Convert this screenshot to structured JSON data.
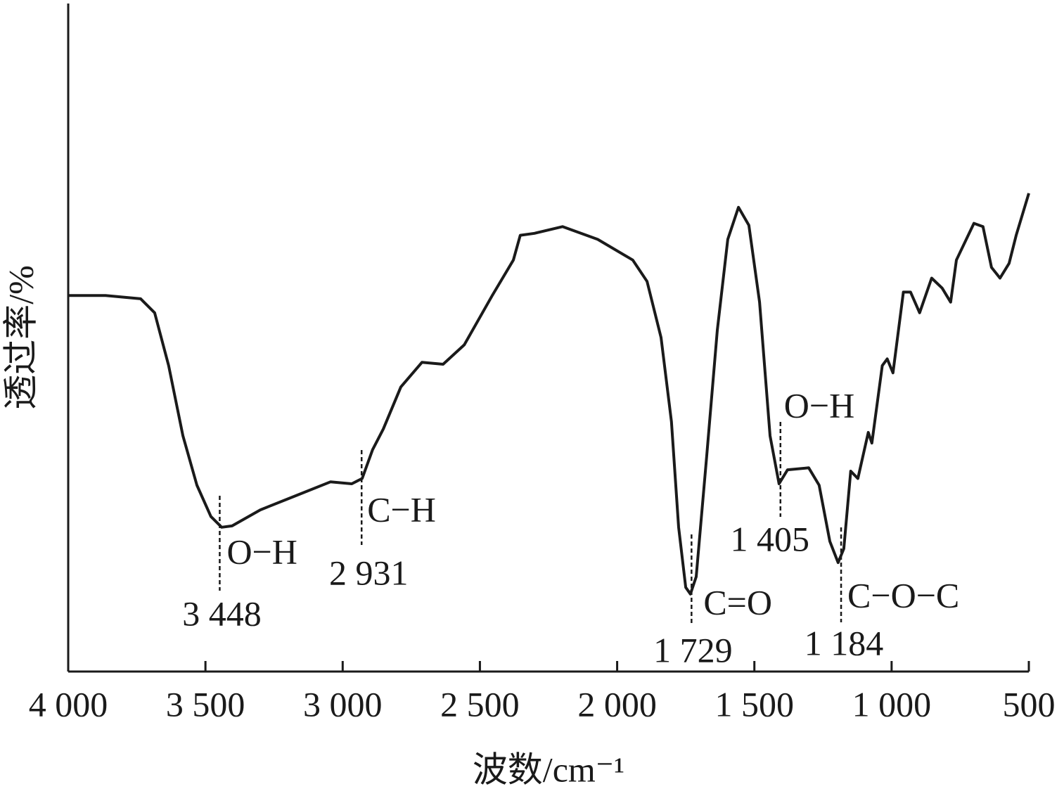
{
  "chart_data": {
    "type": "line",
    "x_label": "波数/cm⁻¹",
    "y_label": "透过率/%",
    "color": "#1a1a1a",
    "xlim": [
      4000,
      500
    ],
    "ylim": [
      0,
      100
    ],
    "xticks": [
      {
        "value": 4000,
        "label": "4 000"
      },
      {
        "value": 3500,
        "label": "3 500"
      },
      {
        "value": 3000,
        "label": "3 000"
      },
      {
        "value": 2500,
        "label": "2 500"
      },
      {
        "value": 2000,
        "label": "2 000"
      },
      {
        "value": 1500,
        "label": "1 500"
      },
      {
        "value": 1000,
        "label": "1 000"
      },
      500
    ],
    "x": [
      4000,
      3864,
      3736,
      3685,
      3634,
      3582,
      3531,
      3480,
      3441,
      3403,
      3300,
      3172,
      3044,
      2967,
      2929,
      2891,
      2852,
      2788,
      2711,
      2634,
      2557,
      2455,
      2378,
      2353,
      2301,
      2199,
      2071,
      1943,
      1891,
      1840,
      1802,
      1776,
      1750,
      1733,
      1712,
      1674,
      1635,
      1597,
      1558,
      1520,
      1481,
      1443,
      1410,
      1379,
      1302,
      1264,
      1225,
      1195,
      1174,
      1149,
      1123,
      1085,
      1072,
      1034,
      1016,
      995,
      957,
      931,
      898,
      854,
      816,
      785,
      764,
      700,
      667,
      636,
      605,
      572,
      546,
      500
    ],
    "values": [
      56.3,
      56.3,
      55.8,
      53.7,
      45.8,
      35.3,
      27.9,
      23.2,
      21.6,
      21.8,
      24.2,
      26.3,
      28.4,
      28.1,
      28.9,
      33.2,
      36.3,
      42.6,
      46.3,
      46.0,
      48.9,
      56.3,
      61.6,
      65.3,
      65.6,
      66.6,
      64.7,
      61.6,
      58.4,
      50.0,
      37.4,
      21.6,
      12.6,
      11.6,
      14.2,
      32.1,
      51.1,
      64.7,
      69.5,
      66.8,
      55.3,
      35.3,
      28.1,
      30.2,
      30.5,
      27.9,
      19.5,
      16.3,
      18.4,
      30.0,
      28.9,
      35.8,
      34.2,
      45.8,
      46.8,
      44.7,
      56.8,
      56.8,
      53.7,
      58.9,
      57.4,
      55.3,
      61.6,
      67.1,
      66.6,
      60.5,
      58.9,
      61.1,
      65.3,
      71.6
    ],
    "annotations": [
      {
        "x": 3448,
        "value_label": "3 448",
        "text": "O−H"
      },
      {
        "x": 2931,
        "value_label": "2 931",
        "text": "C−H"
      },
      {
        "x": 1729,
        "value_label": "1 729",
        "text": "C=O"
      },
      {
        "x": 1405,
        "value_label": "1 405",
        "text": "O−H"
      },
      {
        "x": 1184,
        "value_label": "1 184",
        "text": "C−O−C"
      }
    ]
  }
}
